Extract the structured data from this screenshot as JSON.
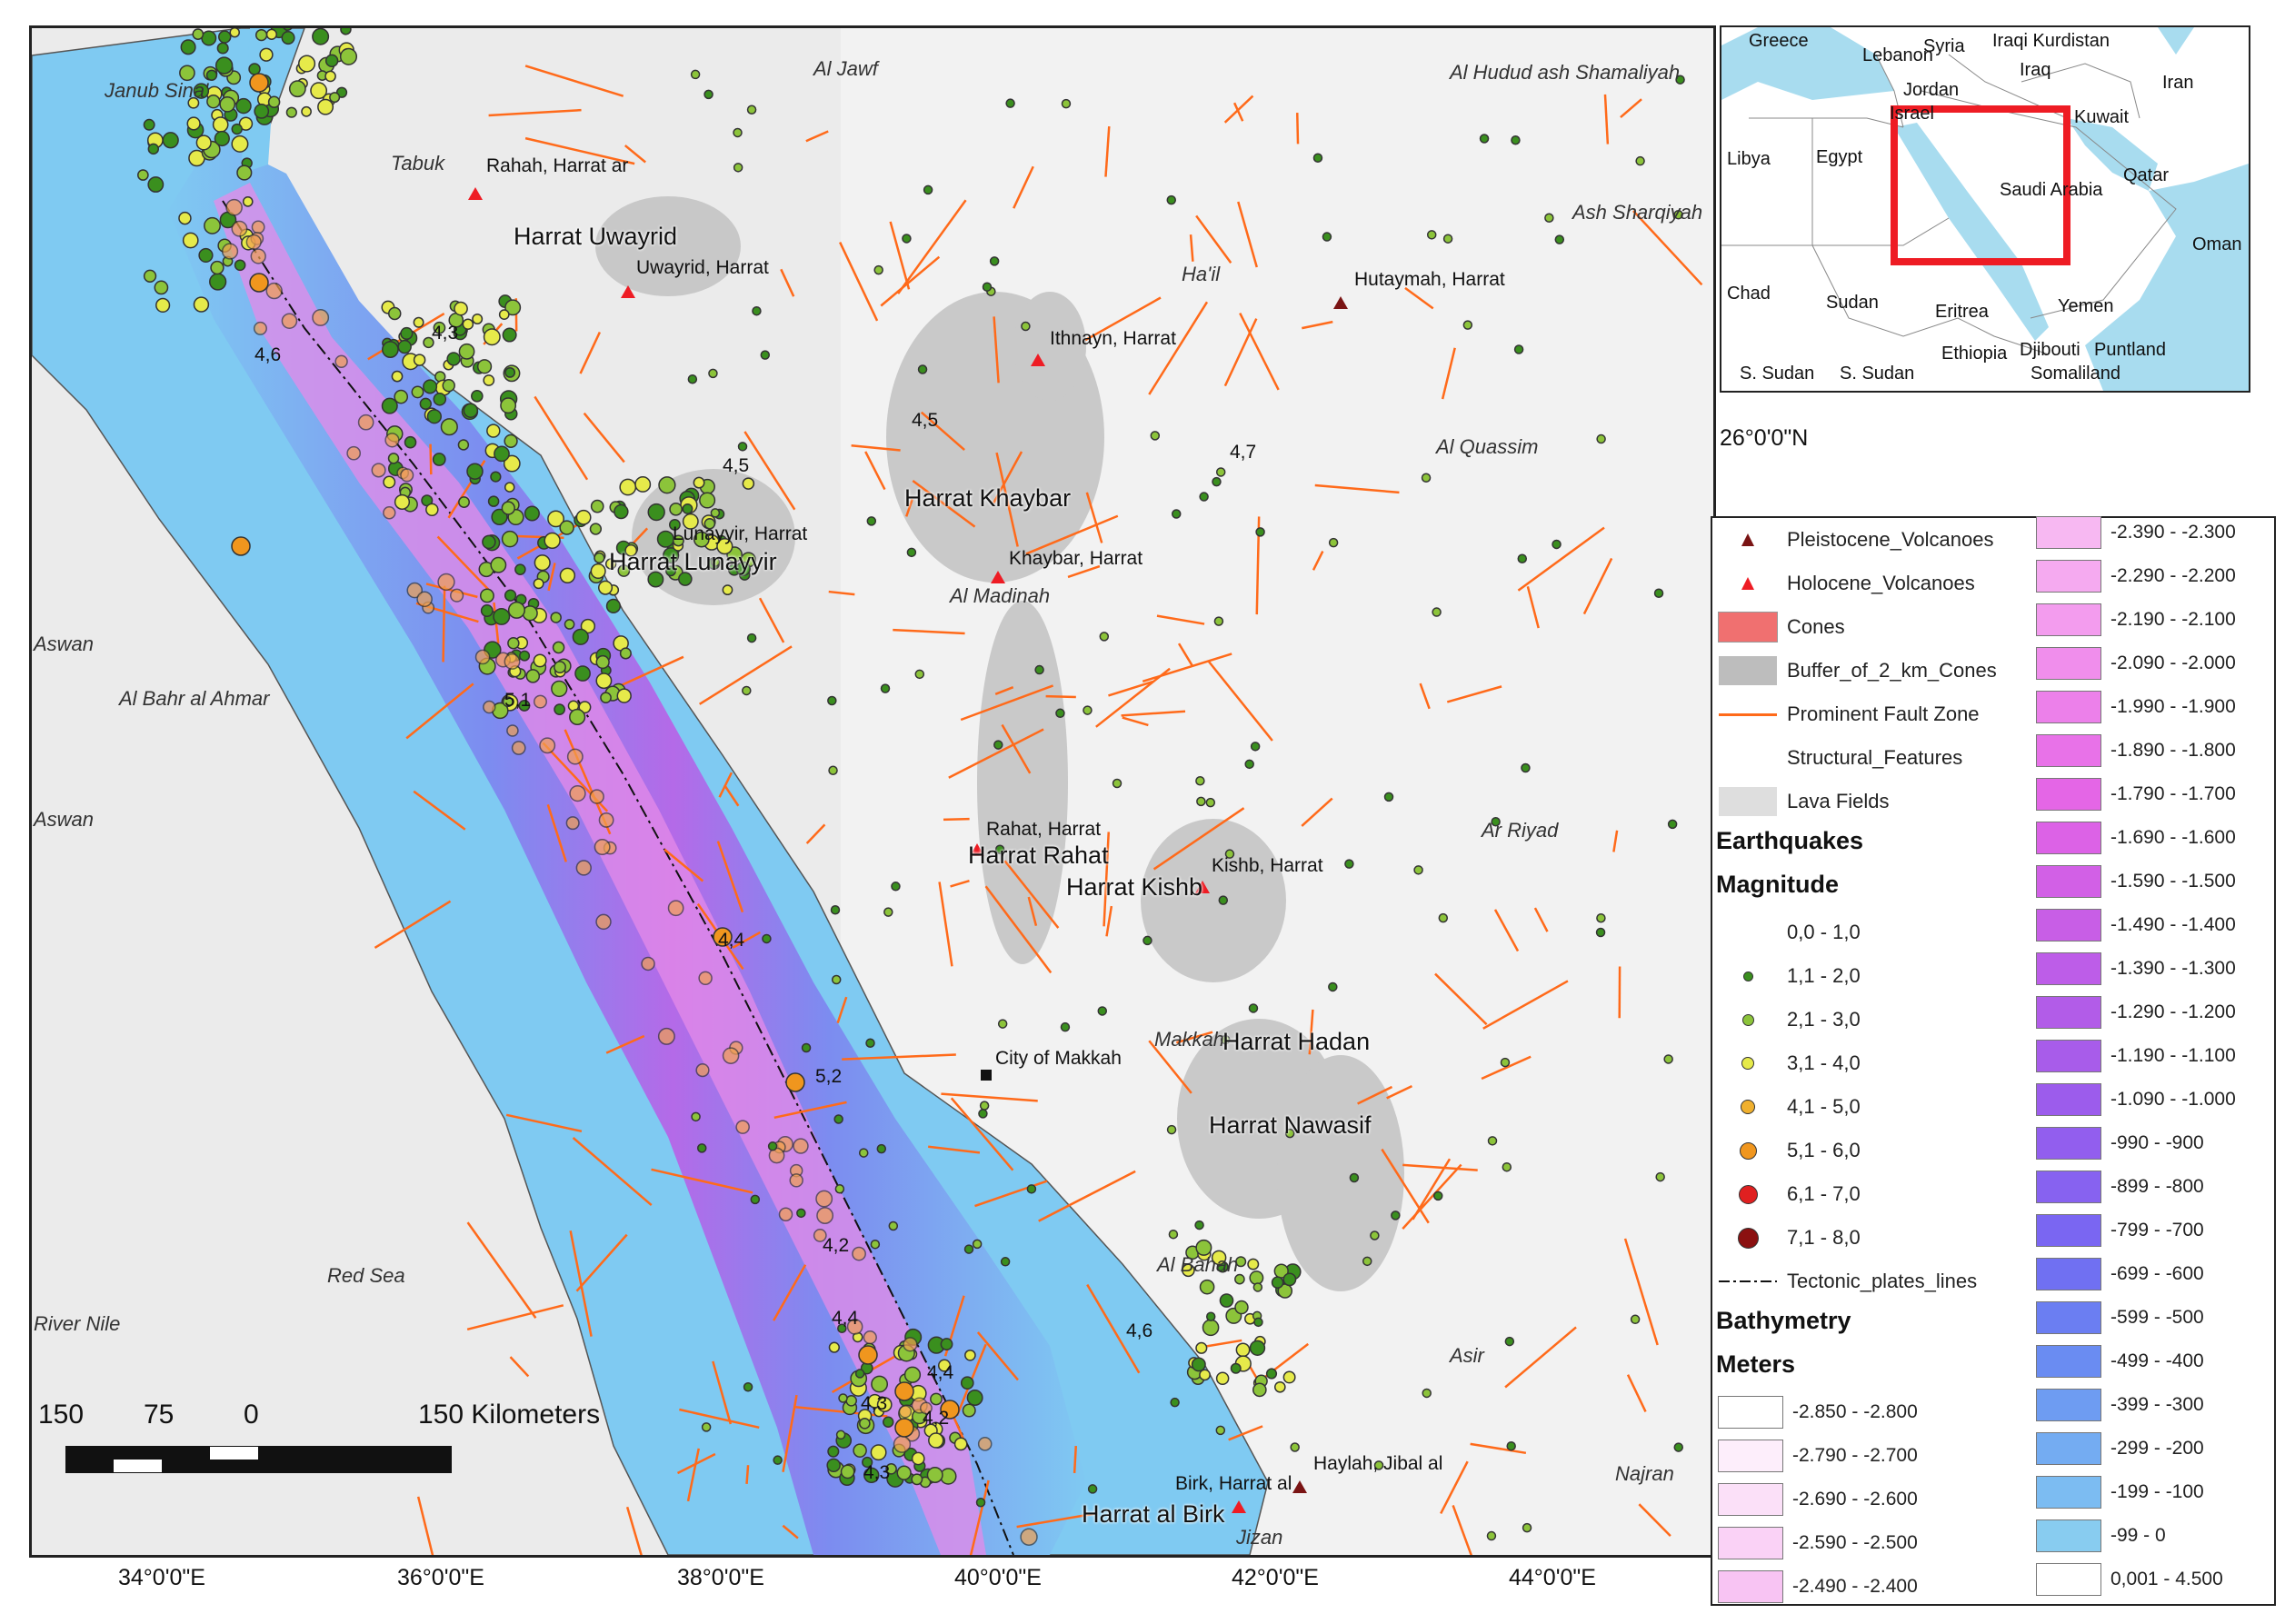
{
  "map": {
    "places": [
      {
        "text": "Janub Sina'"
      },
      {
        "text": "Al Jawf"
      },
      {
        "text": "Al Hudud ash Shamaliyah"
      },
      {
        "text": "Tabuk"
      },
      {
        "text": "Ash Sharqiyah"
      },
      {
        "text": "Ha'il"
      },
      {
        "text": "Al Quassim"
      },
      {
        "text": "Aswan"
      },
      {
        "text": "Al Bahr al Ahmar"
      },
      {
        "text": "Al Madinah"
      },
      {
        "text": "Aswan"
      },
      {
        "text": "Ar Riyad"
      },
      {
        "text": "Makkah"
      },
      {
        "text": "Red Sea"
      },
      {
        "text": "Al Bahah"
      },
      {
        "text": "River Nile"
      },
      {
        "text": "Asir"
      },
      {
        "text": "Najran"
      },
      {
        "text": "Jizan"
      }
    ],
    "volcano_labels": [
      {
        "text": "Rahah, Harrat ar"
      },
      {
        "text": "Uwayrid, Harrat"
      },
      {
        "text": "Hutaymah, Harrat"
      },
      {
        "text": "Ithnayn, Harrat"
      },
      {
        "text": "Lunayyir, Harrat"
      },
      {
        "text": "Khaybar, Harrat"
      },
      {
        "text": "Rahat, Harrat"
      },
      {
        "text": "Kishb, Harrat"
      },
      {
        "text": "City of Makkah"
      },
      {
        "text": "Birk, Harrat al"
      },
      {
        "text": "Haylah, Jibal al"
      }
    ],
    "harrat_labels": [
      {
        "text": "Harrat Uwayrid"
      },
      {
        "text": "Harrat Khaybar"
      },
      {
        "text": "Harrat Lunayyir"
      },
      {
        "text": "Harrat Rahat"
      },
      {
        "text": "Harrat Kishb"
      },
      {
        "text": "Harrat Hadan"
      },
      {
        "text": "Harrat Nawasif"
      },
      {
        "text": "Harrat al Birk"
      }
    ],
    "magnitude_labels": [
      {
        "text": "4,3"
      },
      {
        "text": "4,6"
      },
      {
        "text": "4,5"
      },
      {
        "text": "4,5"
      },
      {
        "text": "4,7"
      },
      {
        "text": "5,1"
      },
      {
        "text": "4,4"
      },
      {
        "text": "5,2"
      },
      {
        "text": "4,2"
      },
      {
        "text": "4,4"
      },
      {
        "text": "4,6"
      },
      {
        "text": "4,4"
      },
      {
        "text": "4,3"
      },
      {
        "text": "4,2"
      },
      {
        "text": "4,3"
      }
    ],
    "x_ticks": [
      "34°0'0\"E",
      "36°0'0\"E",
      "38°0'0\"E",
      "40°0'0\"E",
      "42°0'0\"E",
      "44°0'0\"E"
    ],
    "lat_label": "26°0'0\"N",
    "scale_bar": {
      "labels": [
        "150",
        "75",
        "0",
        "150 Kilometers"
      ]
    }
  },
  "inset": {
    "labels": [
      {
        "text": "Greece"
      },
      {
        "text": "Syria"
      },
      {
        "text": "Iraqi Kurdistan"
      },
      {
        "text": "Lebanon"
      },
      {
        "text": "Iraq"
      },
      {
        "text": "Iran"
      },
      {
        "text": "Jordan"
      },
      {
        "text": "Israel"
      },
      {
        "text": "Kuwait"
      },
      {
        "text": "Libya"
      },
      {
        "text": "Egypt"
      },
      {
        "text": "Saudi Arabia"
      },
      {
        "text": "Qatar"
      },
      {
        "text": "Oman"
      },
      {
        "text": "Chad"
      },
      {
        "text": "Sudan"
      },
      {
        "text": "Eritrea"
      },
      {
        "text": "Yemen"
      },
      {
        "text": "Ethiopia"
      },
      {
        "text": "Djibouti"
      },
      {
        "text": "Puntland"
      },
      {
        "text": "S. Sudan"
      },
      {
        "text": "S. Sudan"
      },
      {
        "text": "Somaliland"
      }
    ],
    "colors": {
      "sea": "#a8dcef",
      "frame": "#ee1c24"
    }
  },
  "legend": {
    "symbol_items": [
      {
        "label": "Pleistocene_Volcanoes",
        "symbol": "triangle",
        "color": "#7a1414"
      },
      {
        "label": "Holocene_Volcanoes",
        "symbol": "triangle",
        "color": "#ee1c24"
      },
      {
        "label": "Cones",
        "symbol": "rect",
        "color": "#f07070"
      },
      {
        "label": "Buffer_of_2_km_Cones",
        "symbol": "rect",
        "color": "#bdbdbd"
      },
      {
        "label": "Prominent Fault Zone",
        "symbol": "line",
        "color": "#ff6a1a"
      },
      {
        "label": "Structural_Features",
        "symbol": "none",
        "color": "#ffffff"
      },
      {
        "label": "Lava Fields",
        "symbol": "rect",
        "color": "#dedede"
      }
    ],
    "earthquakes_heading": "Earthquakes",
    "magnitude_heading": "Magnitude",
    "magnitude_classes": [
      {
        "label": "0,0 - 1,0",
        "color": "#ffffff",
        "size": 0
      },
      {
        "label": "1,1 - 2,0",
        "color": "#3a8f1e",
        "size": 9
      },
      {
        "label": "2,1 - 3,0",
        "color": "#8cc43a",
        "size": 11
      },
      {
        "label": "3,1 - 4,0",
        "color": "#e6ea4a",
        "size": 12
      },
      {
        "label": "4,1 - 5,0",
        "color": "#f0b02e",
        "size": 14
      },
      {
        "label": "5,1 - 6,0",
        "color": "#f0961e",
        "size": 17
      },
      {
        "label": "6,1 - 7,0",
        "color": "#e02020",
        "size": 19
      },
      {
        "label": "7,1 - 8,0",
        "color": "#8b1010",
        "size": 21
      }
    ],
    "tectonic_label": "Tectonic_plates_lines",
    "bathymetry_heading": "Bathymetry",
    "meters_heading": "Meters",
    "bathymetry_left": [
      {
        "label": "-2.850 - -2.800",
        "color": "#ffffff"
      },
      {
        "label": "-2.790 - -2.700",
        "color": "#fdeefb"
      },
      {
        "label": "-2.690 - -2.600",
        "color": "#fbe0f8"
      },
      {
        "label": "-2.590 - -2.500",
        "color": "#fad2f6"
      },
      {
        "label": "-2.490 - -2.400",
        "color": "#f8c4f3"
      }
    ],
    "bathymetry_right": [
      {
        "label": "-2.390 - -2.300",
        "color": "#f7b8f2"
      },
      {
        "label": "-2.290 - -2.200",
        "color": "#f5aaf0"
      },
      {
        "label": "-2.190 - -2.100",
        "color": "#f39cee"
      },
      {
        "label": "-2.090 - -2.000",
        "color": "#f08eec"
      },
      {
        "label": "-1.990 - -1.900",
        "color": "#ec80ea"
      },
      {
        "label": "-1.890 - -1.800",
        "color": "#e872e8"
      },
      {
        "label": "-1.790 - -1.700",
        "color": "#e466e6"
      },
      {
        "label": "-1.690 - -1.600",
        "color": "#dc62e6"
      },
      {
        "label": "-1.590 - -1.500",
        "color": "#d260e6"
      },
      {
        "label": "-1.490 - -1.400",
        "color": "#c85ee6"
      },
      {
        "label": "-1.390 - -1.300",
        "color": "#bd5de8"
      },
      {
        "label": "-1.290 - -1.200",
        "color": "#b25ce8"
      },
      {
        "label": "-1.190 - -1.100",
        "color": "#a85cea"
      },
      {
        "label": "-1.090 - -1.000",
        "color": "#9c5cec"
      },
      {
        "label": "-990 - -900",
        "color": "#925eee"
      },
      {
        "label": "-899 - -800",
        "color": "#8762f0"
      },
      {
        "label": "-799 - -700",
        "color": "#7a66f2"
      },
      {
        "label": "-699 - -600",
        "color": "#7070f2"
      },
      {
        "label": "-599 - -500",
        "color": "#6b7ef2"
      },
      {
        "label": "-499 - -400",
        "color": "#6a8cf2"
      },
      {
        "label": "-399 - -300",
        "color": "#6e9cf2"
      },
      {
        "label": "-299 - -200",
        "color": "#74acf2"
      },
      {
        "label": "-199 - -100",
        "color": "#7cbcf2"
      },
      {
        "label": "-99 - 0",
        "color": "#88ccf0"
      },
      {
        "label": "0,001 - 4.500",
        "color": "#ffffff"
      }
    ]
  }
}
